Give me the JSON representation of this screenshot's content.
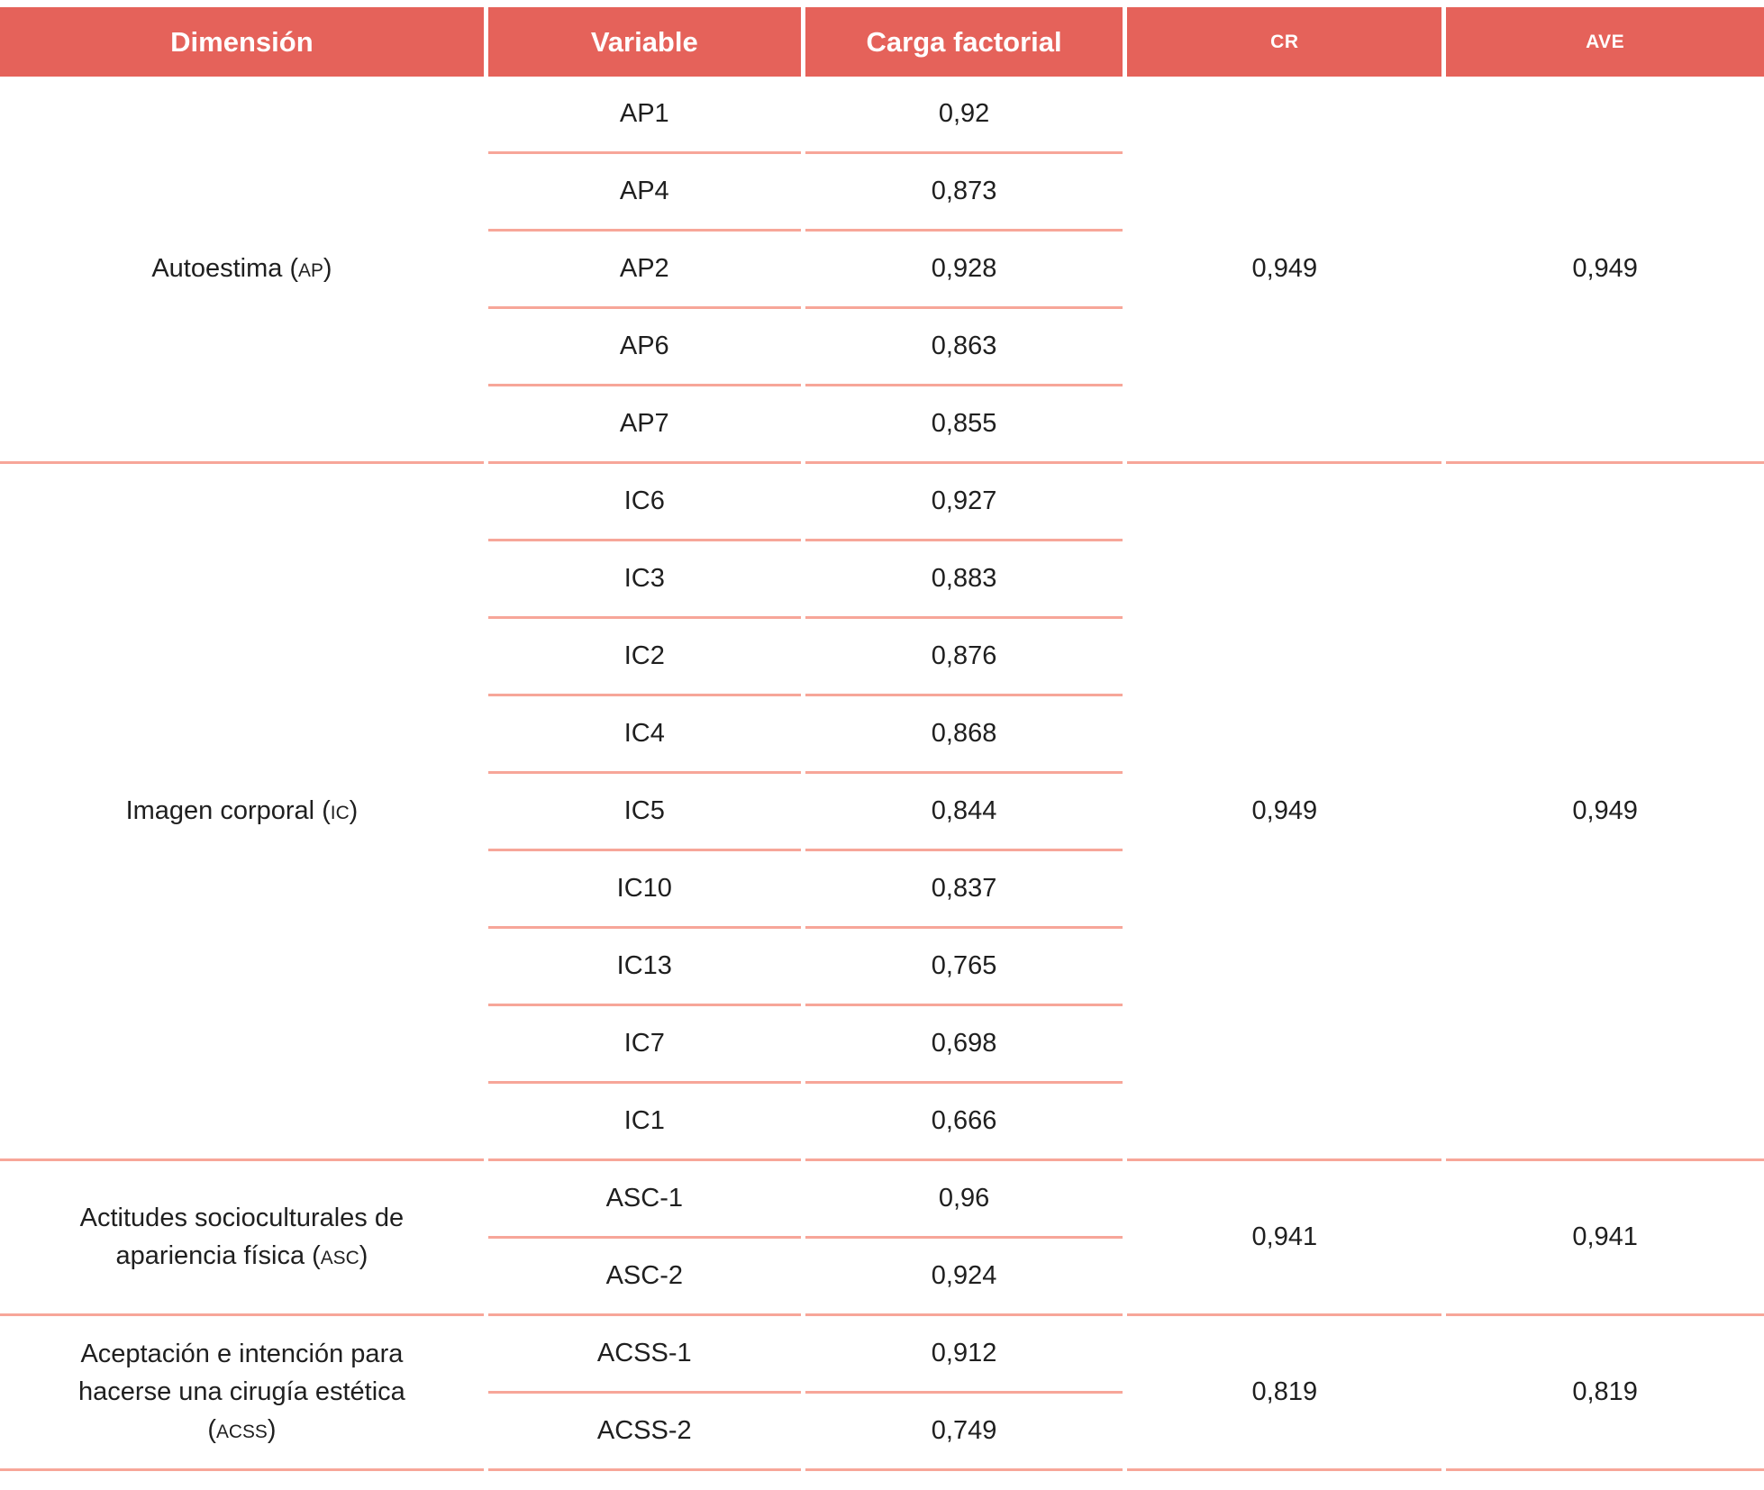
{
  "colors": {
    "header_bg": "#e5625a",
    "header_text": "#ffffff",
    "divider": "#f7a699",
    "text": "#1f1f1f"
  },
  "table": {
    "headers": {
      "dimension": "Dimensión",
      "variable": "Variable",
      "carga": "Carga factorial",
      "cr": "CR",
      "ave": "AVE"
    },
    "sections": [
      {
        "name": "Autoestima",
        "abbr": "AP",
        "cr": "0,949",
        "ave": "0,949",
        "rows": [
          {
            "variable": "AP1",
            "carga": "0,92"
          },
          {
            "variable": "AP4",
            "carga": "0,873"
          },
          {
            "variable": "AP2",
            "carga": "0,928"
          },
          {
            "variable": "AP6",
            "carga": "0,863"
          },
          {
            "variable": "AP7",
            "carga": "0,855"
          }
        ]
      },
      {
        "name": "Imagen corporal",
        "abbr": "IC",
        "cr": "0,949",
        "ave": "0,949",
        "rows": [
          {
            "variable": "IC6",
            "carga": "0,927"
          },
          {
            "variable": "IC3",
            "carga": "0,883"
          },
          {
            "variable": "IC2",
            "carga": "0,876"
          },
          {
            "variable": "IC4",
            "carga": "0,868"
          },
          {
            "variable": "IC5",
            "carga": "0,844"
          },
          {
            "variable": "IC10",
            "carga": "0,837"
          },
          {
            "variable": "IC13",
            "carga": "0,765"
          },
          {
            "variable": "IC7",
            "carga": "0,698"
          },
          {
            "variable": "IC1",
            "carga": "0,666"
          }
        ]
      },
      {
        "name": "Actitudes socioculturales de apariencia física",
        "abbr": "ASC",
        "cr": "0,941",
        "ave": "0,941",
        "rows": [
          {
            "variable": "ASC-1",
            "carga": "0,96"
          },
          {
            "variable": "ASC-2",
            "carga": "0,924"
          }
        ]
      },
      {
        "name": "Aceptación e intención para hacerse una cirugía estética",
        "abbr": "ACSS",
        "cr": "0,819",
        "ave": "0,819",
        "rows": [
          {
            "variable": "ACSS-1",
            "carga": "0,912"
          },
          {
            "variable": "ACSS-2",
            "carga": "0,749"
          }
        ]
      }
    ]
  }
}
